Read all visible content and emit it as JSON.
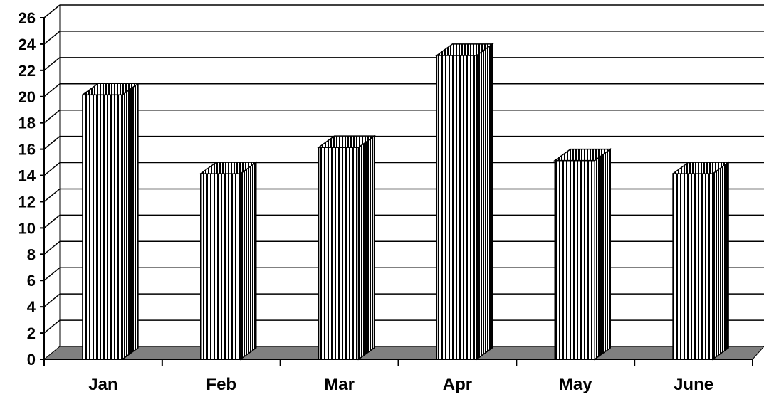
{
  "chart_data": {
    "type": "bar",
    "style": "3d-column",
    "categories": [
      "Jan",
      "Feb",
      "Mar",
      "Apr",
      "May",
      "June"
    ],
    "values": [
      21,
      15,
      17,
      24,
      16,
      15
    ],
    "ylim": [
      0,
      26
    ],
    "yticks": [
      "0",
      "2",
      "4",
      "6",
      "8",
      "10",
      "12",
      "14",
      "16",
      "18",
      "20",
      "22",
      "24",
      "26"
    ],
    "grid": true,
    "legend": "none",
    "colors": {
      "bar_fill": "#ffffff",
      "bar_stripe": "#000000",
      "floor": "#808080",
      "grid": "#000000"
    }
  }
}
